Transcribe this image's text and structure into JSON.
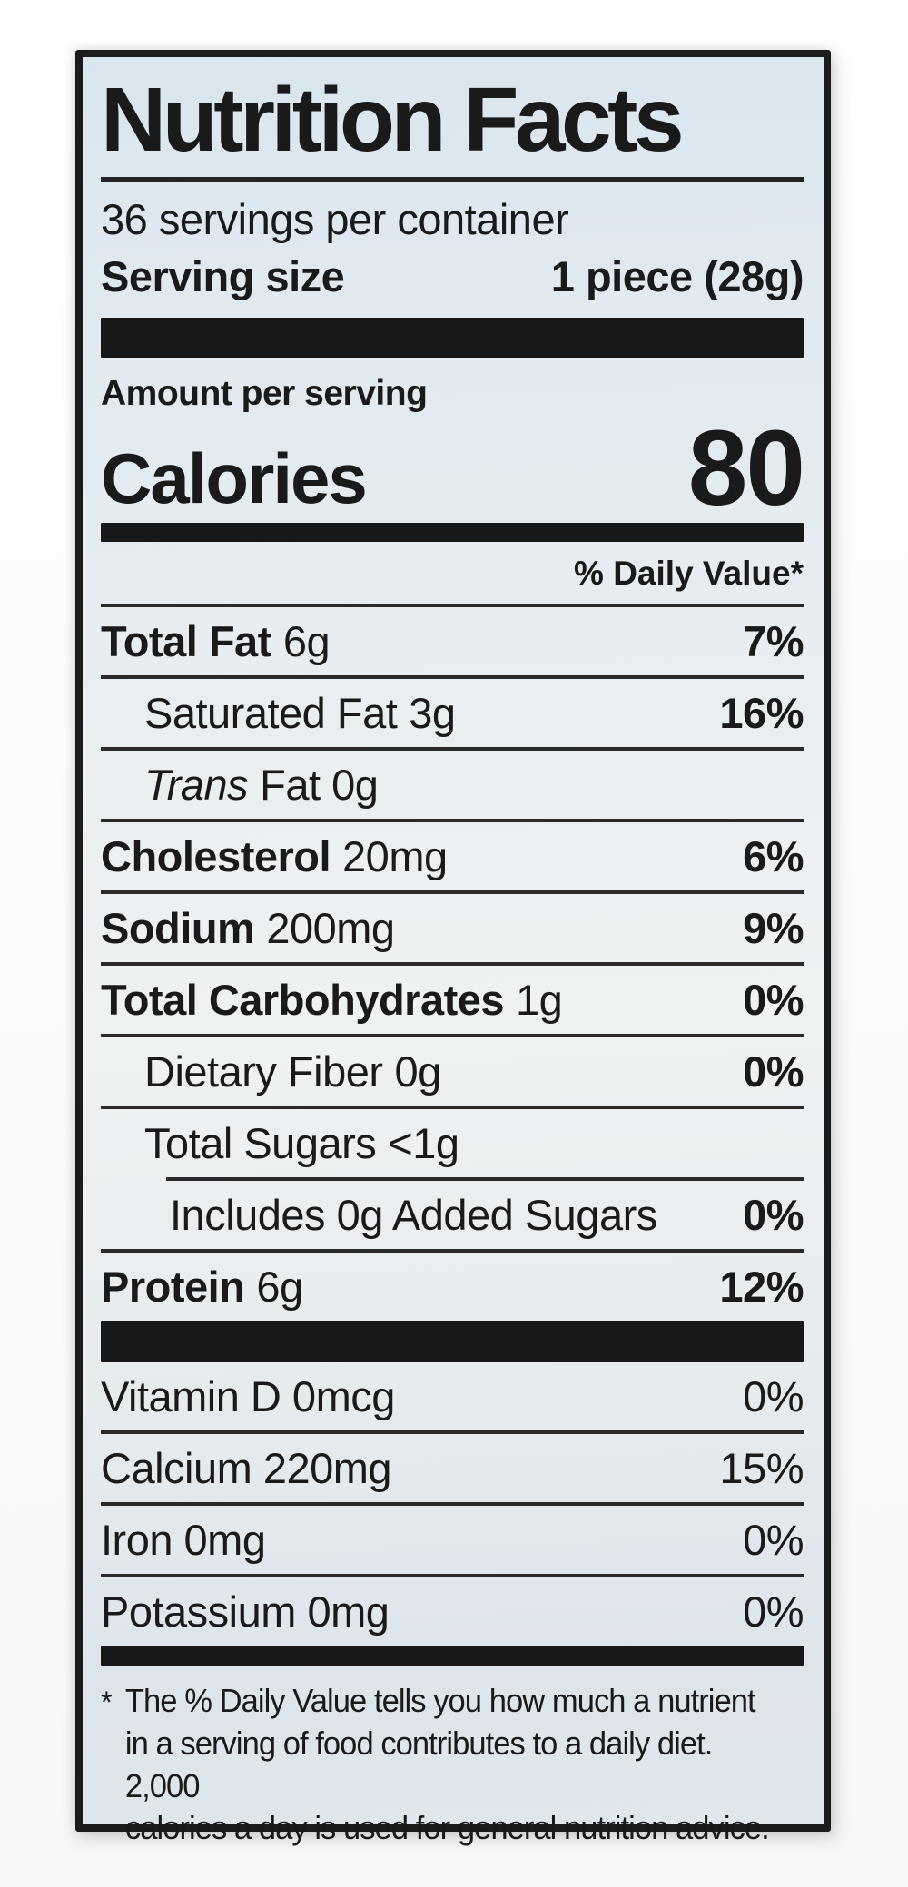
{
  "colors": {
    "label_background": "#e3eaf0",
    "ink": "#1a1a1a",
    "divider_bar": "#181818"
  },
  "label": {
    "title": "Nutrition Facts",
    "servings_per_container": "36 servings per container",
    "serving_size_label": "Serving size",
    "serving_size_value": "1 piece (28g)",
    "amount_per_serving": "Amount per serving",
    "calories_label": "Calories",
    "calories_value": "80",
    "daily_value_header": "% Daily Value*",
    "nutrients": {
      "total_fat": {
        "name": "Total Fat",
        "amount": "6g",
        "dv": "7%"
      },
      "saturated_fat": {
        "name": "Saturated Fat",
        "amount": "3g",
        "dv": "16%"
      },
      "trans_fat": {
        "name": "Trans",
        "amount": "Fat 0g",
        "dv": ""
      },
      "cholesterol": {
        "name": "Cholesterol",
        "amount": "20mg",
        "dv": "6%"
      },
      "sodium": {
        "name": "Sodium",
        "amount": "200mg",
        "dv": "9%"
      },
      "total_carbohydrates": {
        "name": "Total Carbohydrates",
        "amount": "1g",
        "dv": "0%"
      },
      "dietary_fiber": {
        "name": "Dietary Fiber",
        "amount": "0g",
        "dv": "0%"
      },
      "total_sugars": {
        "name": "Total Sugars",
        "amount": "<1g",
        "dv": ""
      },
      "added_sugars": {
        "name": "Includes 0g Added Sugars",
        "amount": "",
        "dv": "0%"
      },
      "protein": {
        "name": "Protein",
        "amount": "6g",
        "dv": "12%"
      }
    },
    "micronutrients": {
      "vitamin_d": {
        "name": "Vitamin D 0mcg",
        "dv": "0%"
      },
      "calcium": {
        "name": "Calcium 220mg",
        "dv": "15%"
      },
      "iron": {
        "name": "Iron 0mg",
        "dv": "0%"
      },
      "potassium": {
        "name": "Potassium 0mg",
        "dv": "0%"
      }
    },
    "footnote": {
      "marker": "*",
      "line1": "The % Daily Value tells you how much a nutrient",
      "line2": "in a serving of food contributes to a daily diet. 2,000",
      "line3": "calories a day is used for general nutrition advice."
    }
  }
}
